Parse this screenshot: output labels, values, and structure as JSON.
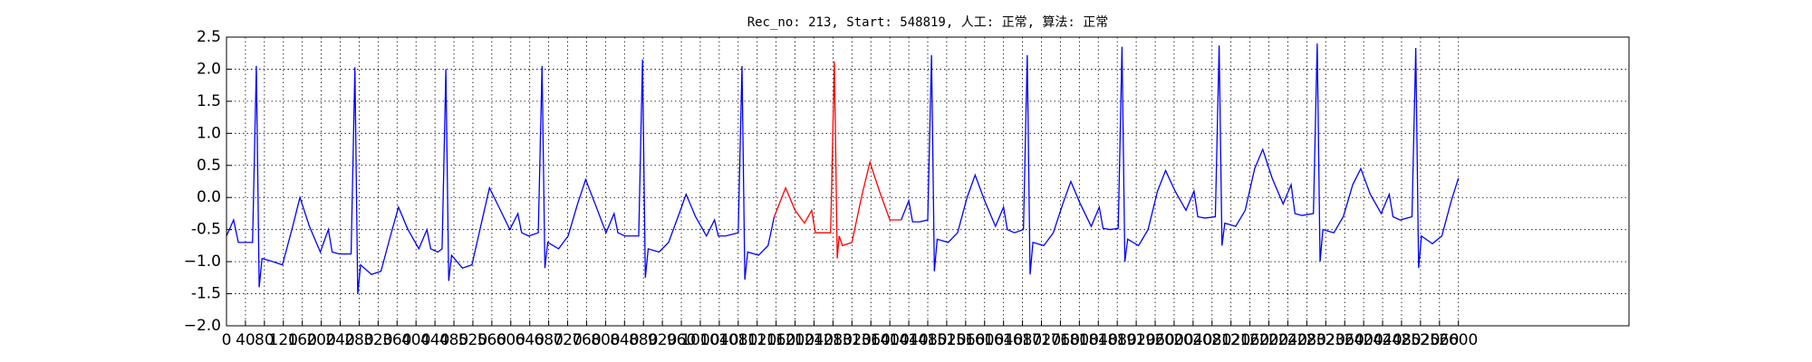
{
  "chart_data": {
    "type": "line",
    "title": "Rec_no: 213, Start: 548819, 人工: 正常, 算法: 正常",
    "xlim": [
      0,
      2960
    ],
    "xticks": [
      0,
      40,
      80,
      120,
      160,
      200,
      240,
      280,
      320,
      360,
      400,
      440,
      480,
      520,
      560,
      600,
      640,
      680,
      720,
      760,
      800,
      840,
      880,
      920,
      960,
      1000,
      1040,
      1080,
      1120,
      1160,
      1200,
      1240,
      1280,
      1320,
      1360,
      1400,
      1440,
      1480,
      1520,
      1560,
      1600,
      1640,
      1680,
      1720,
      1760,
      1800,
      1840,
      1880,
      1920,
      1960,
      2000,
      2040,
      2080,
      2120,
      2160,
      2200,
      2240,
      2280,
      2320,
      2360,
      2400,
      2440,
      2480,
      2520,
      2560,
      2600
    ],
    "ylim": [
      -2.0,
      2.5
    ],
    "yticks": [
      {
        "value": -2.0,
        "label": "−2.0"
      },
      -1.5,
      {
        "value": -1.0,
        "label": "−1.0"
      },
      -0.5,
      {
        "value": 0.0,
        "label": "0.0"
      },
      0.5,
      {
        "value": 1.0,
        "label": "1.0"
      },
      1.5,
      {
        "value": 2.0,
        "label": "2.0"
      },
      2.5
    ],
    "grid": true,
    "series": [
      {
        "color": "#0000ff",
        "x": [
          0,
          15,
          25,
          55,
          63,
          69,
          75,
          98,
          118,
          138,
          155,
          175,
          198,
          215,
          223,
          238,
          263,
          271,
          277,
          283,
          306,
          326,
          346,
          363,
          383,
          406,
          423,
          431,
          446,
          455,
          463,
          469,
          475,
          498,
          518,
          538,
          555,
          575,
          598,
          615,
          623,
          638,
          658,
          666,
          672,
          678,
          701,
          721,
          741,
          758,
          778,
          801,
          818,
          826,
          841,
          870,
          878,
          884,
          890,
          913,
          933,
          953,
          970,
          990,
          1013,
          1030,
          1038,
          1053,
          1080,
          1088,
          1094,
          1100,
          1123,
          1143,
          1156
        ],
        "values": [
          -0.6,
          -0.35,
          -0.7,
          -0.7,
          2.05,
          -1.4,
          -0.95,
          -1.0,
          -1.05,
          -0.5,
          0.0,
          -0.45,
          -0.85,
          -0.5,
          -0.85,
          -0.88,
          -0.88,
          2.03,
          -1.5,
          -1.05,
          -1.2,
          -1.15,
          -0.6,
          -0.15,
          -0.5,
          -0.8,
          -0.5,
          -0.8,
          -0.85,
          -0.8,
          2.0,
          -1.3,
          -0.9,
          -1.1,
          -1.05,
          -0.4,
          0.15,
          -0.15,
          -0.5,
          -0.25,
          -0.55,
          -0.6,
          -0.55,
          2.05,
          -1.1,
          -0.7,
          -0.8,
          -0.6,
          -0.1,
          0.28,
          -0.1,
          -0.55,
          -0.25,
          -0.55,
          -0.6,
          -0.6,
          2.15,
          -1.25,
          -0.8,
          -0.85,
          -0.7,
          -0.3,
          0.05,
          -0.3,
          -0.6,
          -0.35,
          -0.6,
          -0.6,
          -0.55,
          2.05,
          -1.28,
          -0.85,
          -0.9,
          -0.75,
          -0.3
        ]
      },
      {
        "color": "#ff0000",
        "x": [
          1156,
          1180,
          1200,
          1220,
          1235,
          1243,
          1258,
          1275,
          1283,
          1289,
          1293,
          1300,
          1320,
          1340,
          1358,
          1378,
          1400,
          1424
        ],
        "values": [
          -0.3,
          0.15,
          -0.2,
          -0.4,
          -0.2,
          -0.55,
          -0.55,
          -0.55,
          2.12,
          -0.95,
          -0.6,
          -0.75,
          -0.7,
          0.0,
          0.55,
          0.1,
          -0.35,
          -0.35
        ]
      },
      {
        "color": "#0000ff",
        "x": [
          1424,
          1440,
          1448,
          1463,
          1480,
          1488,
          1494,
          1500,
          1523,
          1543,
          1563,
          1580,
          1600,
          1623,
          1640,
          1648,
          1663,
          1682,
          1690,
          1696,
          1702,
          1725,
          1745,
          1765,
          1782,
          1802,
          1825,
          1842,
          1850,
          1865,
          1882,
          1890,
          1896,
          1902,
          1925,
          1945,
          1965,
          1982,
          2002,
          2025,
          2042,
          2050,
          2065,
          2087,
          2095,
          2101,
          2107,
          2130,
          2150,
          2170,
          2187,
          2207,
          2230,
          2247,
          2255,
          2270,
          2294,
          2302,
          2308,
          2314,
          2337,
          2357,
          2377,
          2394,
          2414,
          2437,
          2454,
          2462,
          2477,
          2502,
          2510,
          2516,
          2522,
          2545,
          2565,
          2585,
          2600
        ],
        "values": [
          -0.35,
          -0.05,
          -0.38,
          -0.38,
          -0.35,
          2.22,
          -1.15,
          -0.65,
          -0.7,
          -0.55,
          0.0,
          0.35,
          -0.05,
          -0.45,
          -0.15,
          -0.5,
          -0.55,
          -0.5,
          2.22,
          -1.2,
          -0.7,
          -0.75,
          -0.55,
          -0.1,
          0.25,
          -0.1,
          -0.45,
          -0.15,
          -0.48,
          -0.5,
          -0.48,
          2.35,
          -1.0,
          -0.65,
          -0.75,
          -0.5,
          0.1,
          0.42,
          0.1,
          -0.2,
          0.1,
          -0.3,
          -0.32,
          -0.3,
          2.37,
          -0.75,
          -0.4,
          -0.45,
          -0.2,
          0.45,
          0.75,
          0.3,
          -0.1,
          0.2,
          -0.25,
          -0.28,
          -0.25,
          2.4,
          -1.0,
          -0.5,
          -0.55,
          -0.3,
          0.2,
          0.45,
          0.05,
          -0.25,
          0.05,
          -0.3,
          -0.35,
          -0.3,
          2.33,
          -1.1,
          -0.6,
          -0.72,
          -0.6,
          -0.05,
          0.3
        ]
      }
    ]
  }
}
